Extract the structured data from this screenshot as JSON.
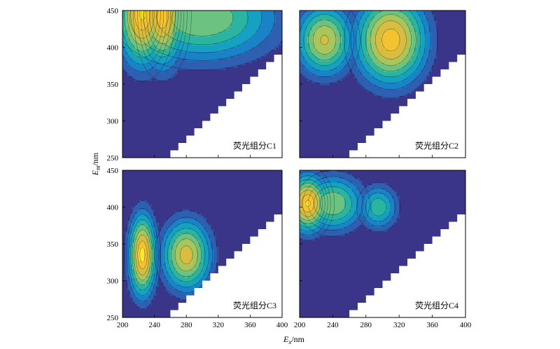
{
  "chart_data": {
    "type": "heatmap",
    "subtype": "filled contour (EEM fluorescence components)",
    "xlabel": "Ex/nm",
    "ylabel": "Em/nm",
    "xlim": [
      200,
      400
    ],
    "ylim": [
      250,
      450
    ],
    "x_ticks": [
      200,
      240,
      280,
      320,
      360,
      400
    ],
    "y_ticks": [
      250,
      300,
      350,
      400,
      450
    ],
    "x_tick_labels": [
      "200",
      "240",
      "280",
      "320",
      "360",
      "400"
    ],
    "y_tick_labels": [
      "250",
      "300",
      "350",
      "400",
      "450"
    ],
    "masked_region": "white staircase triangle where Em is below roughly Ex",
    "mask_line": [
      [
        250,
        250
      ],
      [
        400,
        400
      ]
    ],
    "colors": {
      "background": "#3a3588",
      "levels": [
        "#2f5fb0",
        "#1b82c8",
        "#16a1c2",
        "#2bb5a0",
        "#6cc280",
        "#a9c65c",
        "#d8bd40",
        "#f3c332",
        "#f9eb2a"
      ],
      "outline": "#000000"
    },
    "panels": [
      {
        "label": "荧光组分C1",
        "peaks": [
          {
            "ex": 225,
            "em": 445,
            "intensity": 0.95
          },
          {
            "ex": 250,
            "em": 445,
            "intensity": 0.92
          },
          {
            "ex": 300,
            "em": 440,
            "intensity": 0.55
          }
        ]
      },
      {
        "label": "荧光组分C2",
        "peaks": [
          {
            "ex": 230,
            "em": 410,
            "intensity": 0.7
          },
          {
            "ex": 310,
            "em": 410,
            "intensity": 0.9
          }
        ]
      },
      {
        "label": "荧光组分C3",
        "peaks": [
          {
            "ex": 225,
            "em": 335,
            "intensity": 0.98
          },
          {
            "ex": 280,
            "em": 335,
            "intensity": 0.75
          }
        ]
      },
      {
        "label": "荧光组分C4",
        "peaks": [
          {
            "ex": 210,
            "em": 405,
            "intensity": 0.95
          },
          {
            "ex": 240,
            "em": 405,
            "intensity": 0.55
          },
          {
            "ex": 295,
            "em": 400,
            "intensity": 0.4
          }
        ]
      }
    ]
  }
}
